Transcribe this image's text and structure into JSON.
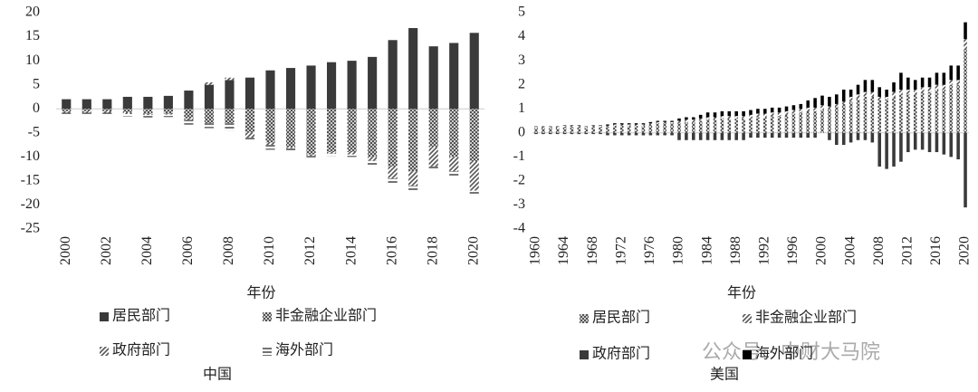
{
  "chart_data": [
    {
      "type": "bar",
      "stacked": true,
      "caption": "中国",
      "x_label": "年份",
      "categories": [
        "2000",
        null,
        "2002",
        null,
        "2004",
        null,
        "2006",
        null,
        "2008",
        null,
        "2010",
        null,
        "2012",
        null,
        "2014",
        null,
        "2016",
        null,
        "2018",
        null,
        "2020"
      ],
      "ylim": [
        -25,
        20
      ],
      "yticks": [
        -25,
        -20,
        -15,
        -10,
        -5,
        0,
        5,
        10,
        15,
        20
      ],
      "series": [
        {
          "name": "居民部门",
          "color": "#3a3a3a",
          "fill": "solid",
          "values": [
            2,
            2,
            2,
            2.5,
            2.5,
            2.7,
            3.8,
            5,
            6,
            6.5,
            8,
            8.5,
            9,
            9.7,
            10,
            10.8,
            14.3,
            16.8,
            13,
            13.7,
            15.8
          ]
        },
        {
          "name": "非金融企业部门",
          "color": "#555555",
          "fill": "crosshatch",
          "values": [
            -0.5,
            -0.5,
            -0.5,
            -0.8,
            -1,
            -1,
            -2,
            -3,
            -3,
            -5,
            -7,
            -8,
            -9.5,
            -9,
            -9,
            -10,
            -12,
            -13,
            -8,
            -10,
            -11
          ]
        },
        {
          "name": "政府部门",
          "color": "#666666",
          "fill": "diagonal",
          "values": [
            -0.3,
            -0.3,
            -0.3,
            -0.3,
            -0.3,
            -0.2,
            -0.3,
            0.5,
            0.5,
            -1,
            -0.5,
            -0.2,
            -0.3,
            -0.3,
            -0.5,
            -0.8,
            -2.5,
            -3,
            -4,
            -3,
            -6
          ]
        },
        {
          "name": "海外部门",
          "color": "#555555",
          "fill": "horizontal",
          "values": [
            -0.3,
            -0.3,
            -0.3,
            -0.5,
            -0.5,
            -0.5,
            -1,
            -1,
            -1.5,
            -0.5,
            -1,
            -0.5,
            -0.5,
            -0.5,
            -0.5,
            -1,
            -1,
            -1,
            -0.5,
            -1,
            -1
          ]
        }
      ]
    },
    {
      "type": "bar",
      "stacked": true,
      "caption": "美国",
      "x_label": "年份",
      "categories": [
        "1960",
        null,
        null,
        null,
        "1964",
        null,
        null,
        null,
        "1968",
        null,
        null,
        null,
        "1972",
        null,
        null,
        null,
        "1976",
        null,
        null,
        null,
        "1980",
        null,
        null,
        null,
        "1984",
        null,
        null,
        null,
        "1988",
        null,
        null,
        null,
        "1992",
        null,
        null,
        null,
        "1996",
        null,
        null,
        null,
        "2000",
        null,
        null,
        null,
        "2004",
        null,
        null,
        null,
        "2008",
        null,
        null,
        null,
        "2012",
        null,
        null,
        null,
        "2016",
        null,
        null,
        null,
        "2020"
      ],
      "ylim": [
        -4,
        5
      ],
      "yticks": [
        -4,
        -3,
        -2,
        -1,
        0,
        1,
        2,
        3,
        4,
        5
      ],
      "series": [
        {
          "name": "居民部门",
          "color": "#555555",
          "fill": "crosshatch",
          "values": [
            0.2,
            0.2,
            0.2,
            0.2,
            0.25,
            0.25,
            0.25,
            0.2,
            0.25,
            0.25,
            0.25,
            0.3,
            0.3,
            0.3,
            0.3,
            0.3,
            0.35,
            0.4,
            0.4,
            0.4,
            0.4,
            0.45,
            0.45,
            0.5,
            0.55,
            0.55,
            0.6,
            0.6,
            0.6,
            0.6,
            0.6,
            0.65,
            0.65,
            0.7,
            0.7,
            0.75,
            0.8,
            0.85,
            0.9,
            0.9,
            0.95,
            1.0,
            1.1,
            1.2,
            1.3,
            1.4,
            1.5,
            1.5,
            1.4,
            1.4,
            1.5,
            1.6,
            1.6,
            1.6,
            1.7,
            1.7,
            1.8,
            1.8,
            2.0,
            2.0,
            3.5
          ]
        },
        {
          "name": "非金融企业部门",
          "color": "#444444",
          "fill": "diagonal",
          "values": [
            0.05,
            0.05,
            0.05,
            0.05,
            0.05,
            0.05,
            0.05,
            0.05,
            0.05,
            0.05,
            0.05,
            0.05,
            0.05,
            0.05,
            0.05,
            0.05,
            0.05,
            0.05,
            0.05,
            0.05,
            0.1,
            0.1,
            0.1,
            0.1,
            0.1,
            0.1,
            0.1,
            0.1,
            0.1,
            0.1,
            0.15,
            0.15,
            0.15,
            0.15,
            0.15,
            0.15,
            0.15,
            0.15,
            0.15,
            0.15,
            0.2,
            0.1,
            0.1,
            0.1,
            0.2,
            0.2,
            0.2,
            0.2,
            0.1,
            0.1,
            0.2,
            0.2,
            0.2,
            0.2,
            0.2,
            0.2,
            0.2,
            0.2,
            0.2,
            0.2,
            0.4
          ]
        },
        {
          "name": "政府部门",
          "color": "#3a3a3a",
          "fill": "solid",
          "values": [
            -0.05,
            -0.05,
            -0.05,
            -0.05,
            -0.05,
            -0.05,
            -0.05,
            -0.05,
            -0.05,
            -0.05,
            -0.1,
            -0.1,
            -0.1,
            -0.1,
            -0.1,
            -0.1,
            -0.1,
            -0.1,
            -0.1,
            -0.1,
            -0.3,
            -0.3,
            -0.3,
            -0.3,
            -0.3,
            -0.3,
            -0.3,
            -0.3,
            -0.3,
            -0.3,
            -0.2,
            -0.2,
            -0.2,
            -0.2,
            -0.2,
            -0.2,
            -0.2,
            -0.2,
            -0.2,
            -0.2,
            0,
            -0.3,
            -0.5,
            -0.5,
            -0.4,
            -0.3,
            -0.3,
            -0.4,
            -1.4,
            -1.5,
            -1.4,
            -1.2,
            -0.8,
            -0.7,
            -0.7,
            -0.8,
            -0.8,
            -0.9,
            -1.0,
            -1.1,
            -3.1
          ]
        },
        {
          "name": "海外部门",
          "color": "#000000",
          "fill": "solid",
          "values": [
            0.02,
            0.02,
            0.02,
            0.02,
            0.02,
            0.02,
            0.02,
            0.02,
            0.02,
            0.02,
            0.05,
            0.05,
            0.05,
            0.05,
            0.05,
            0.05,
            0.05,
            0.05,
            0.05,
            0.05,
            0.1,
            0.1,
            0.1,
            0.15,
            0.2,
            0.2,
            0.2,
            0.2,
            0.2,
            0.2,
            0.2,
            0.2,
            0.2,
            0.2,
            0.2,
            0.2,
            0.2,
            0.2,
            0.3,
            0.4,
            0.4,
            0.4,
            0.4,
            0.5,
            0.3,
            0.4,
            0.5,
            0.5,
            0.4,
            0.3,
            0.4,
            0.7,
            0.5,
            0.4,
            0.4,
            0.4,
            0.5,
            0.5,
            0.6,
            0.6,
            0.7
          ]
        }
      ]
    }
  ],
  "watermark": "公众号 · 中财大马院"
}
